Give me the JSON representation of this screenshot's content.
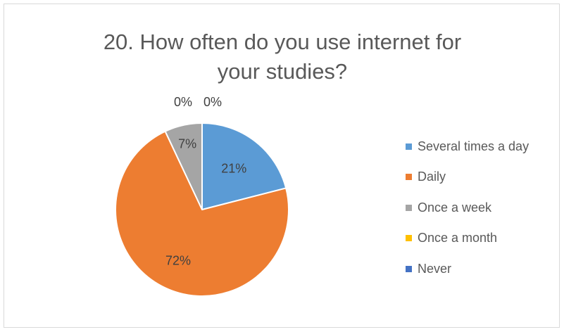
{
  "chart_data": {
    "type": "pie",
    "title_lines": [
      "20. How often do you use internet for",
      "your studies?"
    ],
    "categories": [
      "Several times a day",
      "Daily",
      "Once a week",
      "Once a month",
      "Never"
    ],
    "values": [
      21,
      72,
      7,
      0,
      0
    ],
    "data_labels": [
      "21%",
      "72%",
      "7%",
      "0%",
      "0%"
    ],
    "colors": [
      "#5b9bd5",
      "#ed7d31",
      "#a5a5a5",
      "#ffc000",
      "#4472c4"
    ],
    "legend_position": "right"
  }
}
